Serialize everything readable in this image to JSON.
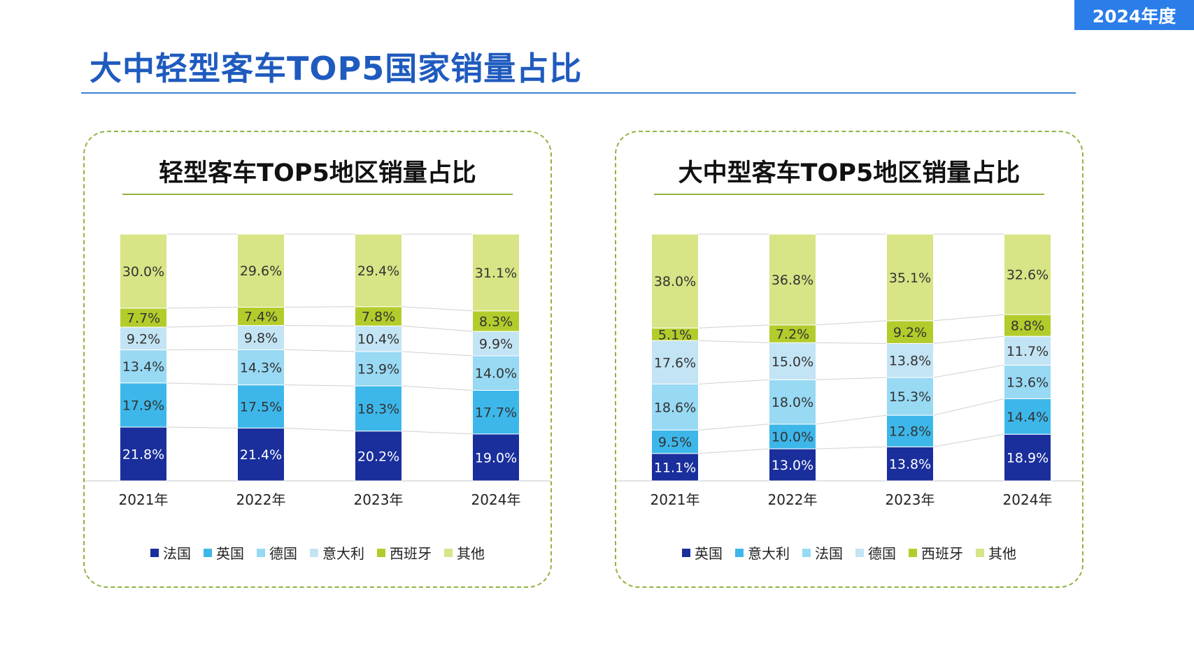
{
  "header": {
    "badge": "2024年度",
    "title": "大中轻型客车TOP5国家销量占比"
  },
  "colors": {
    "accent": "#2b7de9",
    "title": "#1f5bbf",
    "panel_border": "#8fb440"
  },
  "chart_data": [
    {
      "type": "bar",
      "stacked": true,
      "title": "轻型客车TOP5地区销量占比",
      "categories": [
        "2021年",
        "2022年",
        "2023年",
        "2024年"
      ],
      "legend_position": "bottom",
      "series": [
        {
          "name": "法国",
          "color": "#1a2f9c",
          "label_color": "#ffffff",
          "values": [
            21.8,
            21.4,
            20.2,
            19.0
          ]
        },
        {
          "name": "英国",
          "color": "#3db7ea",
          "label_color": "#333333",
          "values": [
            17.9,
            17.5,
            18.3,
            17.7
          ]
        },
        {
          "name": "德国",
          "color": "#98d9f4",
          "label_color": "#333333",
          "values": [
            13.4,
            14.3,
            13.9,
            14.0
          ]
        },
        {
          "name": "意大利",
          "color": "#c3e4f4",
          "label_color": "#333333",
          "values": [
            9.2,
            9.8,
            10.4,
            9.9
          ]
        },
        {
          "name": "西班牙",
          "color": "#b3cc2b",
          "label_color": "#333333",
          "values": [
            7.7,
            7.4,
            7.8,
            8.3
          ]
        },
        {
          "name": "其他",
          "color": "#d8e485",
          "label_color": "#333333",
          "values": [
            30.0,
            29.6,
            29.4,
            31.1
          ]
        }
      ],
      "value_labels": [
        [
          "21.8%",
          "21.4%",
          "20.2%",
          "19.0%"
        ],
        [
          "17.9%",
          "17.5%",
          "18.3%",
          "17.7%"
        ],
        [
          "13.4%",
          "14.3%",
          "13.9%",
          "14.0%"
        ],
        [
          "9.2%",
          "9.8%",
          "10.4%",
          "9.9%"
        ],
        [
          "7.7%",
          "7.4%",
          "7.8%",
          "8.3%"
        ],
        [
          "30.0%",
          "29.6%",
          "29.4%",
          "31.1%"
        ]
      ]
    },
    {
      "type": "bar",
      "stacked": true,
      "title": "大中型客车TOP5地区销量占比",
      "categories": [
        "2021年",
        "2022年",
        "2023年",
        "2024年"
      ],
      "legend_position": "bottom",
      "series": [
        {
          "name": "英国",
          "color": "#1a2f9c",
          "label_color": "#ffffff",
          "values": [
            11.1,
            13.0,
            13.8,
            18.9
          ]
        },
        {
          "name": "意大利",
          "color": "#3db7ea",
          "label_color": "#333333",
          "values": [
            9.5,
            10.0,
            12.8,
            14.4
          ]
        },
        {
          "name": "法国",
          "color": "#98d9f4",
          "label_color": "#333333",
          "values": [
            18.6,
            18.0,
            15.3,
            13.6
          ]
        },
        {
          "name": "德国",
          "color": "#c3e4f4",
          "label_color": "#333333",
          "values": [
            17.6,
            15.0,
            13.8,
            11.7
          ]
        },
        {
          "name": "西班牙",
          "color": "#b3cc2b",
          "label_color": "#333333",
          "values": [
            5.1,
            7.2,
            9.2,
            8.8
          ]
        },
        {
          "name": "其他",
          "color": "#d8e485",
          "label_color": "#333333",
          "values": [
            38.0,
            36.8,
            35.1,
            32.6
          ]
        }
      ],
      "value_labels": [
        [
          "11.1%",
          "13.0%",
          "13.8%",
          "18.9%"
        ],
        [
          "9.5%",
          "10.0%",
          "12.8%",
          "14.4%"
        ],
        [
          "18.6%",
          "18.0%",
          "15.3%",
          "13.6%"
        ],
        [
          "17.6%",
          "15.0%",
          "13.8%",
          "11.7%"
        ],
        [
          "5.1%",
          "7.2%",
          "9.2%",
          "8.8%"
        ],
        [
          "38.0%",
          "36.8%",
          "35.1%",
          "32.6%"
        ]
      ]
    }
  ]
}
